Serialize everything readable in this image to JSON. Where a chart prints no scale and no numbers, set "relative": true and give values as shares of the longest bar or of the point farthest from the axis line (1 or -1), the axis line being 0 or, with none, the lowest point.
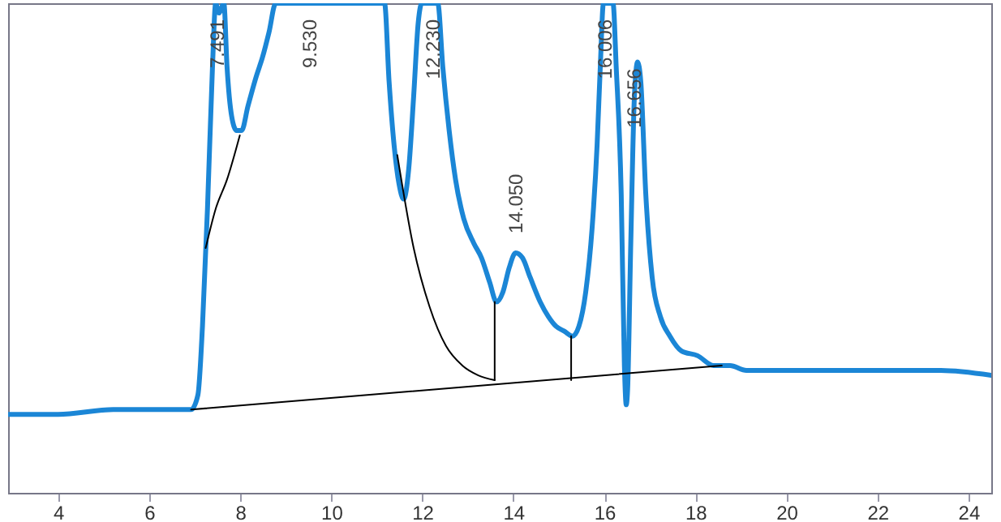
{
  "chart_data": {
    "type": "line",
    "relative": true,
    "xlim": [
      2.9,
      24.5
    ],
    "xticks": [
      4,
      6,
      8,
      10,
      12,
      14,
      16,
      18,
      20,
      22,
      24
    ],
    "line_style": "solid",
    "series": [
      {
        "color": "#1b86d6",
        "x": [
          2.9,
          4.0,
          5.21,
          6.28,
          6.92,
          7.07,
          7.17,
          7.28,
          7.39,
          7.46,
          7.53,
          7.64,
          7.71,
          7.81,
          7.92,
          8.03,
          8.17,
          8.35,
          8.49,
          8.63,
          8.78,
          9.53,
          11.17,
          11.27,
          11.38,
          11.49,
          11.59,
          11.7,
          11.81,
          11.91,
          11.99,
          12.34,
          12.45,
          12.59,
          12.73,
          12.91,
          13.13,
          13.3,
          13.48,
          13.63,
          13.77,
          13.91,
          14.05,
          14.2,
          14.37,
          14.59,
          14.77,
          14.94,
          15.12,
          15.3,
          15.44,
          15.59,
          15.73,
          15.84,
          15.91,
          15.98,
          16.19,
          16.26,
          16.37,
          16.44,
          16.48,
          16.51,
          16.58,
          16.66,
          16.73,
          16.8,
          16.91,
          17.05,
          17.23,
          17.44,
          17.69,
          18.05,
          18.4,
          18.76,
          19.12,
          19.47,
          20.19,
          21.26,
          22.32,
          23.39,
          24.5
        ],
        "values": [
          0.16,
          0.16,
          0.17,
          0.17,
          0.17,
          0.2,
          0.34,
          0.58,
          0.87,
          1,
          0.98,
          1,
          0.87,
          0.77,
          0.74,
          0.74,
          0.79,
          0.85,
          0.89,
          0.94,
          1,
          1,
          1,
          0.84,
          0.71,
          0.63,
          0.6,
          0.66,
          0.81,
          0.96,
          1,
          1,
          0.87,
          0.74,
          0.64,
          0.56,
          0.51,
          0.48,
          0.43,
          0.39,
          0.41,
          0.46,
          0.49,
          0.48,
          0.44,
          0.39,
          0.36,
          0.34,
          0.33,
          0.32,
          0.34,
          0.41,
          0.54,
          0.71,
          0.87,
          1,
          1,
          0.87,
          0.61,
          0.26,
          0.18,
          0.21,
          0.51,
          0.81,
          0.88,
          0.84,
          0.61,
          0.44,
          0.36,
          0.32,
          0.29,
          0.28,
          0.26,
          0.26,
          0.25,
          0.25,
          0.25,
          0.25,
          0.25,
          0.25,
          0.24
        ]
      },
      {
        "color": "#000000",
        "x": [
          6.92,
          18.58
        ],
        "values": [
          0.17,
          0.26
        ]
      },
      {
        "color": "#000000",
        "x": [
          7.24,
          7.46,
          7.71,
          7.99
        ],
        "values": [
          0.5,
          0.58,
          0.64,
          0.73
        ]
      },
      {
        "color": "#000000",
        "x": [
          11.45,
          11.81,
          12.16,
          12.52,
          12.88,
          13.23,
          13.59
        ],
        "values": [
          0.69,
          0.5,
          0.38,
          0.3,
          0.26,
          0.24,
          0.23
        ]
      },
      {
        "color": "#000000",
        "x": [
          13.59,
          13.59
        ],
        "values": [
          0.23,
          0.39
        ]
      },
      {
        "color": "#000000",
        "x": [
          15.27,
          15.27
        ],
        "values": [
          0.23,
          0.32
        ]
      }
    ],
    "annotations": [
      {
        "text": "7.491",
        "x": 7.49,
        "y": 1
      },
      {
        "text": "9.530",
        "x": 9.53,
        "y": 1
      },
      {
        "text": "12.230",
        "x": 12.23,
        "y": 1
      },
      {
        "text": "14.050",
        "x": 14.05,
        "y": 0.51
      },
      {
        "text": "16.006",
        "x": 16.01,
        "y": 1
      },
      {
        "text": "16.656",
        "x": 16.66,
        "y": 0.9
      }
    ]
  }
}
